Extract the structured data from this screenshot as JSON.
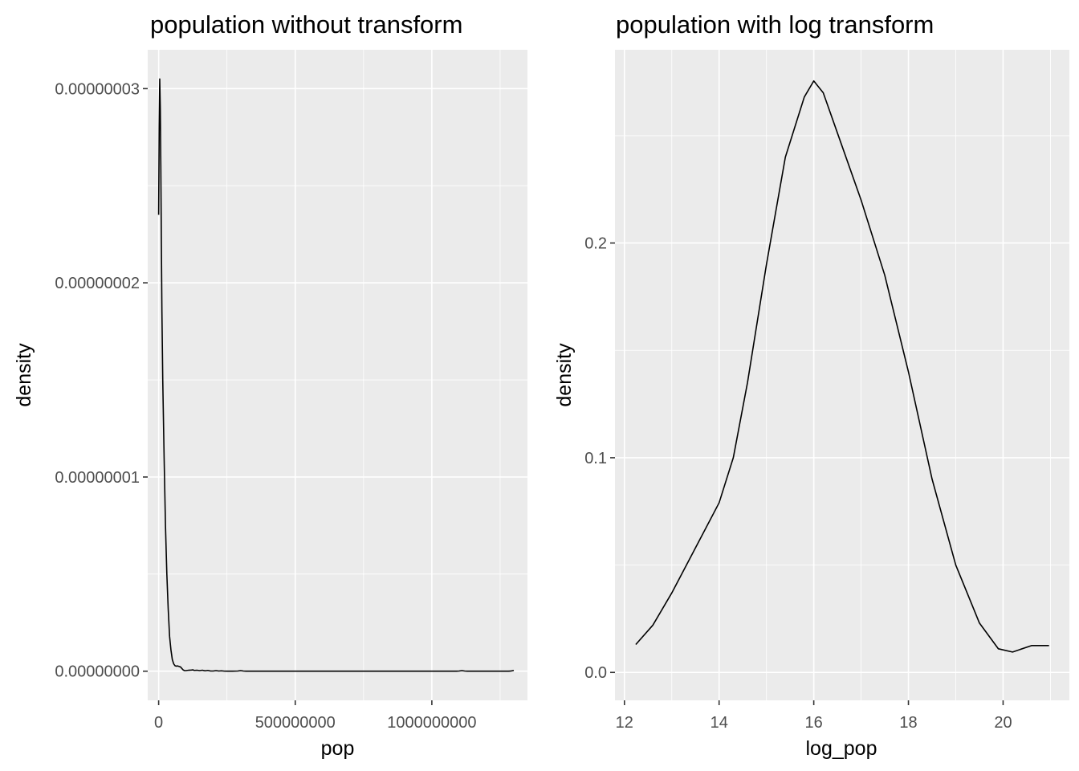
{
  "chart_data": [
    {
      "type": "line",
      "title": "population without transform",
      "xlabel": "pop",
      "ylabel": "density",
      "xlim": [
        -40000000,
        1350000000
      ],
      "ylim": [
        -1.5e-09,
        3.2e-08
      ],
      "x_ticks": [
        0,
        500000000,
        1000000000
      ],
      "x_tick_labels": [
        "0",
        "500000000",
        "1000000000"
      ],
      "y_ticks": [
        0,
        1e-08,
        2e-08,
        3e-08
      ],
      "y_tick_labels": [
        "0.00000000",
        "0.00000001",
        "0.00000002",
        "0.00000003"
      ],
      "grid": true,
      "legend": "none",
      "line_color": "#000000",
      "series": [
        {
          "x": [
            0,
            2000000,
            4000000,
            6000000,
            8000000,
            10000000,
            12000000,
            15000000,
            20000000,
            25000000,
            30000000,
            35000000,
            40000000,
            45000000,
            50000000,
            55000000,
            60000000,
            65000000,
            70000000,
            75000000,
            80000000,
            85000000,
            90000000,
            95000000,
            100000000,
            110000000,
            120000000,
            125000000,
            130000000,
            140000000,
            150000000,
            160000000,
            170000000,
            180000000,
            190000000,
            200000000,
            210000000,
            220000000,
            230000000,
            240000000,
            250000000,
            270000000,
            290000000,
            300000000,
            310000000,
            320000000,
            340000000,
            400000000,
            600000000,
            800000000,
            1000000000,
            1090000000,
            1100000000,
            1110000000,
            1120000000,
            1130000000,
            1200000000,
            1280000000,
            1290000000,
            1300000000
          ],
          "y": [
            2.35e-08,
            2.8e-08,
            3.05e-08,
            2.9e-08,
            2.6e-08,
            2.2e-08,
            1.85e-08,
            1.5e-08,
            1.1e-08,
            7.5e-09,
            5e-09,
            3.2e-09,
            1.8e-09,
            1.1e-09,
            6e-10,
            3.8e-10,
            2.8e-10,
            2.6e-10,
            2.7e-10,
            2.4e-10,
            2.2e-10,
            1.4e-10,
            6e-11,
            3e-11,
            3e-11,
            5e-11,
            6e-11,
            7e-11,
            4e-11,
            5e-11,
            3e-11,
            5e-11,
            2e-11,
            4e-11,
            1e-11,
            1e-11,
            3e-11,
            1e-11,
            2e-11,
            4e-12,
            0,
            0,
            1e-11,
            3e-11,
            1e-11,
            0,
            0,
            0,
            0,
            0,
            0,
            0,
            1e-11,
            3e-11,
            1e-11,
            0,
            0,
            0,
            1e-11,
            4e-11
          ]
        }
      ]
    },
    {
      "type": "line",
      "title": "population with log transform",
      "xlabel": "log_pop",
      "ylabel": "density",
      "xlim": [
        11.8,
        21.4
      ],
      "ylim": [
        -0.013,
        0.29
      ],
      "x_ticks": [
        12,
        14,
        16,
        18,
        20
      ],
      "x_tick_labels": [
        "12",
        "14",
        "16",
        "18",
        "20"
      ],
      "y_ticks": [
        0,
        0.1,
        0.2
      ],
      "y_tick_labels": [
        "0.0",
        "0.1",
        "0.2"
      ],
      "grid": true,
      "legend": "none",
      "line_color": "#000000",
      "series": [
        {
          "x": [
            12.24,
            12.6,
            13.0,
            13.5,
            14.0,
            14.3,
            14.6,
            15.0,
            15.4,
            15.8,
            16.0,
            16.2,
            16.6,
            17.0,
            17.5,
            18.0,
            18.5,
            19.0,
            19.5,
            19.9,
            20.2,
            20.6,
            20.97
          ],
          "y": [
            0.013,
            0.022,
            0.037,
            0.058,
            0.079,
            0.1,
            0.135,
            0.19,
            0.24,
            0.268,
            0.2755,
            0.27,
            0.245,
            0.22,
            0.185,
            0.14,
            0.09,
            0.05,
            0.023,
            0.011,
            0.0095,
            0.0125,
            0.0125
          ]
        }
      ]
    }
  ]
}
